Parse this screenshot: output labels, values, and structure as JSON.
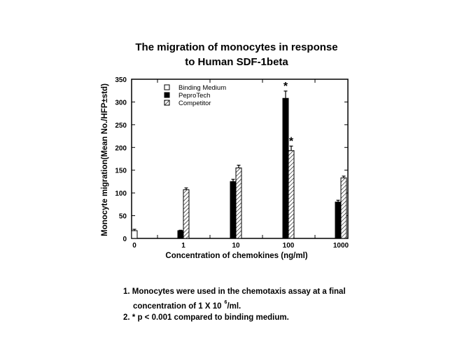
{
  "title": {
    "line1": "The migration of monocytes in response",
    "line2": "to Human SDF-1beta"
  },
  "notes": {
    "note1_line1": "1. Monocytes were used in the chemotaxis assay at a final",
    "note1_line2_pre": "concentration of 1 X 10",
    "note1_line2_sup": "6",
    "note1_line2_post": "/ml.",
    "note2": "2. * p < 0.001 compared to binding medium."
  },
  "chart_data": {
    "type": "bar",
    "title": "The migration of monocytes in response to Human SDF-1beta",
    "xlabel": "Concentration of chemokines (ng/ml)",
    "ylabel": "Monocyte migration(Mean No./HFP±std)",
    "categories": [
      "0",
      "1",
      "10",
      "100",
      "1000"
    ],
    "ylim": [
      0,
      350
    ],
    "yticks": [
      0,
      50,
      100,
      150,
      200,
      250,
      300,
      350
    ],
    "grid": false,
    "legend_position": "upper-left inside plot",
    "series": [
      {
        "name": "Binding Medium",
        "fill": "white",
        "values": [
          17,
          null,
          null,
          null,
          null
        ],
        "errors": [
          3,
          null,
          null,
          null,
          null
        ]
      },
      {
        "name": "PeproTech",
        "fill": "black",
        "values": [
          null,
          17,
          125,
          308,
          80
        ],
        "errors": [
          null,
          1,
          5,
          16,
          4
        ]
      },
      {
        "name": "Competitor",
        "fill": "hatched",
        "values": [
          null,
          107,
          155,
          193,
          133
        ],
        "errors": [
          null,
          4,
          6,
          10,
          4
        ]
      }
    ],
    "annotations": [
      {
        "text": "*",
        "category": "100",
        "series": "PeproTech"
      },
      {
        "text": "*",
        "category": "100",
        "series": "Competitor"
      }
    ]
  }
}
